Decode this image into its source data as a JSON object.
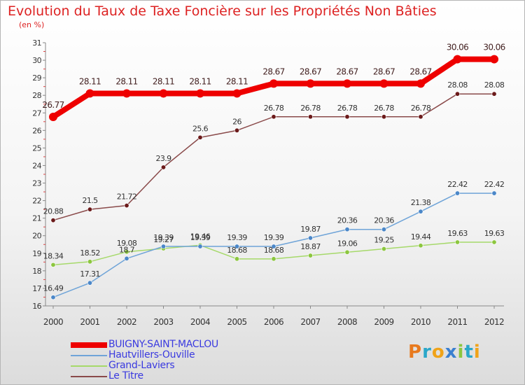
{
  "title": "Evolution du Taux de Taxe Foncière sur les Propriétés Non Bâties",
  "subtitle": "(en %)",
  "logo": {
    "text": "Proxiti",
    "letters": [
      {
        "char": "P",
        "color": "#e87a1e"
      },
      {
        "char": "r",
        "color": "#2aa7c9"
      },
      {
        "char": "o",
        "color": "#f0a319"
      },
      {
        "char": "x",
        "color": "#3a7fd0"
      },
      {
        "char": "i",
        "color": "#8cc63f"
      },
      {
        "char": "t",
        "color": "#2aa7c9"
      },
      {
        "char": "i",
        "color": "#f0a319"
      }
    ]
  },
  "chart_data": {
    "type": "line",
    "title": "Evolution du Taux de Taxe Foncière sur les Propriétés Non Bâties",
    "ylabel": "(en %)",
    "xlabel": "",
    "x": [
      "2000",
      "2001",
      "2002",
      "2003",
      "2004",
      "2005",
      "2006",
      "2007",
      "2008",
      "2009",
      "2010",
      "2011",
      "2012"
    ],
    "ylim": [
      16,
      31
    ],
    "yticks": [
      "16",
      "17",
      "18",
      "19",
      "20",
      "21",
      "22",
      "23",
      "24",
      "25",
      "26",
      "27",
      "28",
      "29",
      "30",
      "31"
    ],
    "grid": false,
    "legend_position": "bottom-left",
    "series": [
      {
        "name": "BUIGNY-SAINT-MACLOU",
        "color": "#ee0000",
        "width": 8,
        "values": [
          26.77,
          28.11,
          28.11,
          28.11,
          28.11,
          28.11,
          28.67,
          28.67,
          28.67,
          28.67,
          28.67,
          30.06,
          30.06
        ],
        "labels": [
          "26.77",
          "28.11",
          "28.11",
          "28.11",
          "28.11",
          "28.11",
          "28.67",
          "28.67",
          "28.67",
          "28.67",
          "28.67",
          "30.06",
          "30.06"
        ]
      },
      {
        "name": "Hautvillers-Ouville",
        "color": "#6fa4d8",
        "marker": "#4b87c8",
        "width": 1.5,
        "values": [
          16.49,
          17.31,
          18.7,
          19.39,
          19.39,
          19.39,
          19.39,
          19.87,
          20.36,
          20.36,
          21.38,
          22.42,
          22.42
        ],
        "labels": [
          "16.49",
          "17.31",
          "18.7",
          "19.39",
          "19.39",
          "19.39",
          "19.39",
          "19.87",
          "20.36",
          "20.36",
          "21.38",
          "22.42",
          "22.42"
        ]
      },
      {
        "name": "Grand-Laviers",
        "color": "#a6d96a",
        "marker": "#8cc63f",
        "width": 1.5,
        "values": [
          18.34,
          18.52,
          19.08,
          19.27,
          19.46,
          18.68,
          18.68,
          18.87,
          19.06,
          19.25,
          19.44,
          19.63,
          19.63
        ],
        "labels": [
          "18.34",
          "18.52",
          "19.08",
          "19.27",
          "19.46",
          "18.68",
          "18.68",
          "18.87",
          "19.06",
          "19.25",
          "19.44",
          "19.63",
          "19.63"
        ]
      },
      {
        "name": "Le Titre",
        "color": "#8a4a4a",
        "marker": "#6b1a1a",
        "width": 1.5,
        "values": [
          20.88,
          21.5,
          21.72,
          23.9,
          25.6,
          26,
          26.78,
          26.78,
          26.78,
          26.78,
          26.78,
          28.08,
          28.08
        ],
        "labels": [
          "20.88",
          "21.5",
          "21.72",
          "23.9",
          "25.6",
          "26",
          "26.78",
          "26.78",
          "26.78",
          "26.78",
          "26.78",
          "28.08",
          "28.08"
        ]
      }
    ]
  }
}
